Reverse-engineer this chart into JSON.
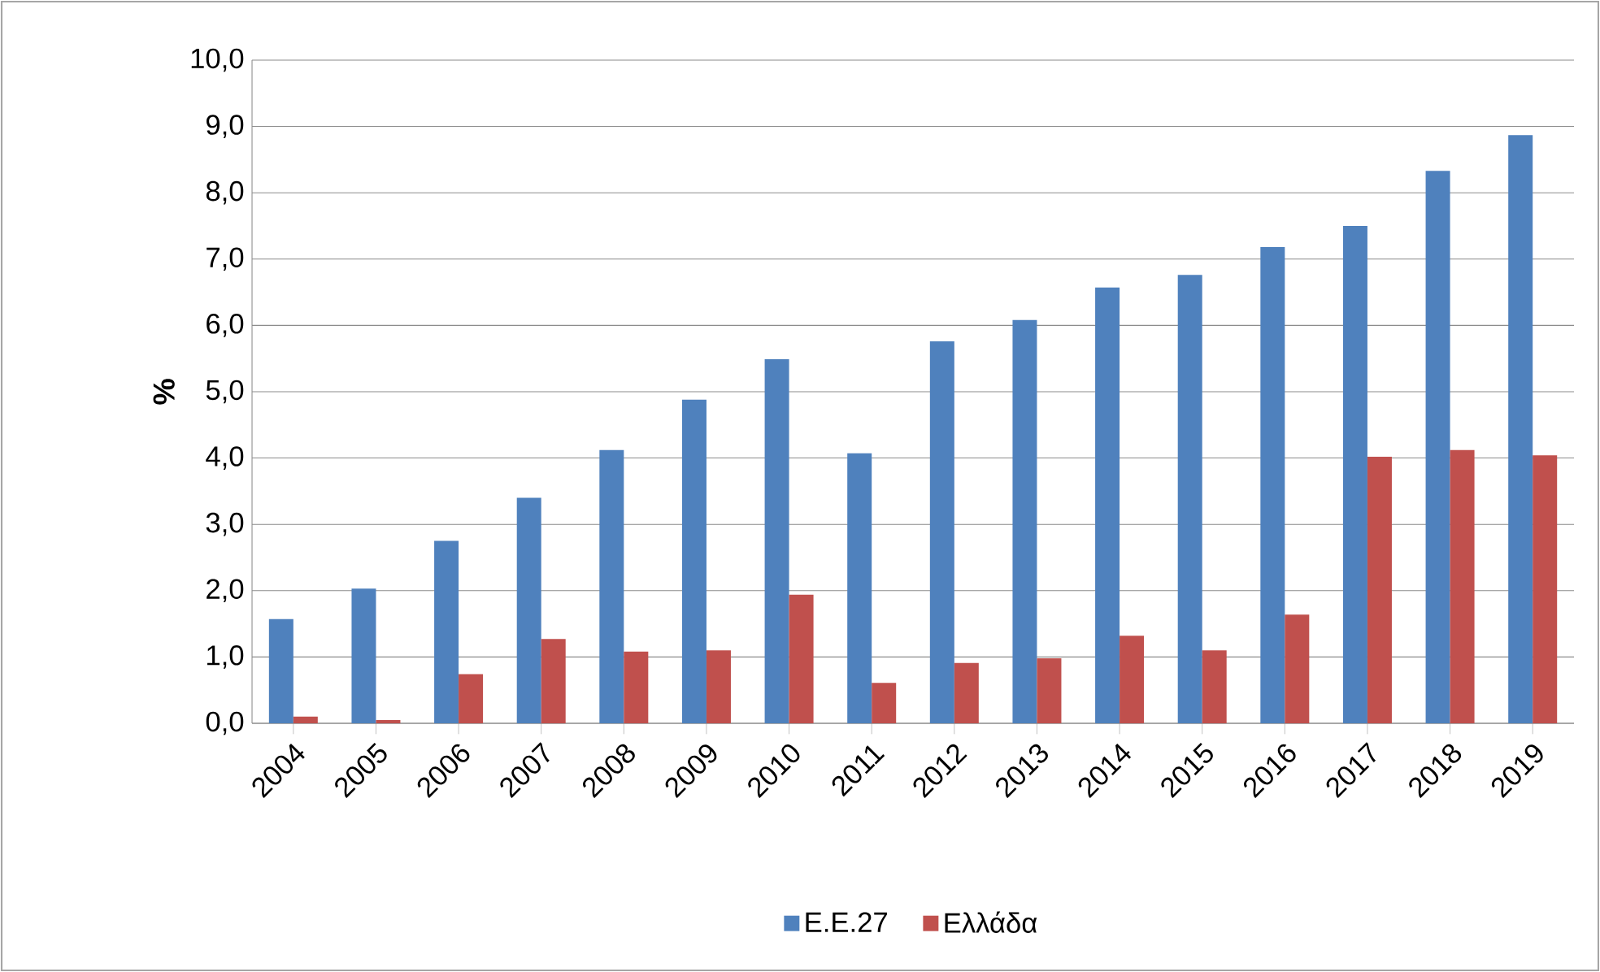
{
  "chart_data": {
    "type": "bar",
    "ylabel": "%",
    "categories": [
      "2004",
      "2005",
      "2006",
      "2007",
      "2008",
      "2009",
      "2010",
      "2011",
      "2012",
      "2013",
      "2014",
      "2015",
      "2016",
      "2017",
      "2018",
      "2019"
    ],
    "series": [
      {
        "name": "Ε.Ε.27",
        "color": "#4f81bd",
        "values": [
          1.57,
          2.03,
          2.75,
          3.4,
          4.12,
          4.88,
          5.49,
          4.07,
          5.76,
          6.08,
          6.57,
          6.76,
          7.18,
          7.5,
          8.33,
          8.87
        ]
      },
      {
        "name": "Ελλάδα",
        "color": "#c0504d",
        "values": [
          0.1,
          0.05,
          0.74,
          1.27,
          1.08,
          1.1,
          1.94,
          0.61,
          0.91,
          0.98,
          1.32,
          1.1,
          1.64,
          4.02,
          4.12,
          4.04
        ]
      }
    ],
    "ylim": [
      0,
      10
    ],
    "yticks": [
      {
        "value": 0,
        "label": "0,0"
      },
      {
        "value": 1,
        "label": "1,0"
      },
      {
        "value": 2,
        "label": "2,0"
      },
      {
        "value": 3,
        "label": "3,0"
      },
      {
        "value": 4,
        "label": "4,0"
      },
      {
        "value": 5,
        "label": "5,0"
      },
      {
        "value": 6,
        "label": "6,0"
      },
      {
        "value": 7,
        "label": "7,0"
      },
      {
        "value": 8,
        "label": "8,0"
      },
      {
        "value": 9,
        "label": "9,0"
      },
      {
        "value": 10,
        "label": "10,0"
      }
    ],
    "grid": "y",
    "legend": "bottom"
  }
}
